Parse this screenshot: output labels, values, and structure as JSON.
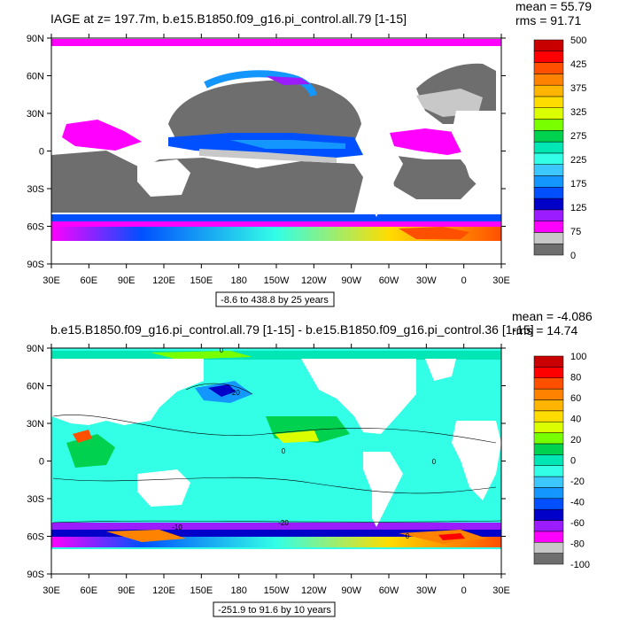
{
  "colors": {
    "land": "#ffffff",
    "frame": "#000000",
    "age_palette": [
      "#6e6e6e",
      "#c8c8c8",
      "#ff00ff",
      "#9a1cff",
      "#0000c8",
      "#0050ff",
      "#1496ff",
      "#3cc8ff",
      "#32ffe6",
      "#00e6b4",
      "#00d250",
      "#78ff00",
      "#dcff00",
      "#ffdc00",
      "#ffb400",
      "#ff8200",
      "#ff5000",
      "#ff0000",
      "#c80000"
    ],
    "diff_palette": [
      "#6e6e6e",
      "#c8c8c8",
      "#ff00ff",
      "#9a1cff",
      "#0000c8",
      "#0050ff",
      "#1496ff",
      "#3cc8ff",
      "#32ffe6",
      "#00e6b4",
      "#00d250",
      "#78ff00",
      "#dcff00",
      "#ffdc00",
      "#ffb400",
      "#ff8200",
      "#ff5000",
      "#ff0000",
      "#c80000"
    ]
  },
  "top_panel": {
    "title": "IAGE at z= 197.7m, b.e15.B1850.f09_g16.pi_control.all.79 [1-15]",
    "mean": "mean = 55.79",
    "rms": "rms = 91.71",
    "range_note": "-8.6 to 438.8 by 25 years",
    "colorbar_labels": [
      "500",
      "425",
      "375",
      "325",
      "275",
      "225",
      "175",
      "125",
      "75",
      "0"
    ]
  },
  "bottom_panel": {
    "title": "b.e15.B1850.f09_g16.pi_control.all.79 [1-15] - b.e15.B1850.f09_g16.pi_control.36 [1-15]",
    "mean": "mean = -4.086",
    "rms": "rms = 14.74",
    "range_note": "-251.9 to 91.6 by 10 years",
    "colorbar_labels": [
      "100",
      "80",
      "60",
      "40",
      "20",
      "0",
      "-20",
      "-40",
      "-60",
      "-80",
      "-100"
    ],
    "contour_labels": [
      "0",
      "-20",
      "0",
      "0",
      "-20",
      "-10",
      "0"
    ]
  },
  "axes": {
    "lat_ticks": [
      "90N",
      "60N",
      "30N",
      "0",
      "30S",
      "60S",
      "90S"
    ],
    "lon_ticks": [
      "30E",
      "60E",
      "90E",
      "120E",
      "150E",
      "180",
      "150W",
      "120W",
      "90W",
      "60W",
      "30W",
      "0",
      "30E"
    ]
  }
}
